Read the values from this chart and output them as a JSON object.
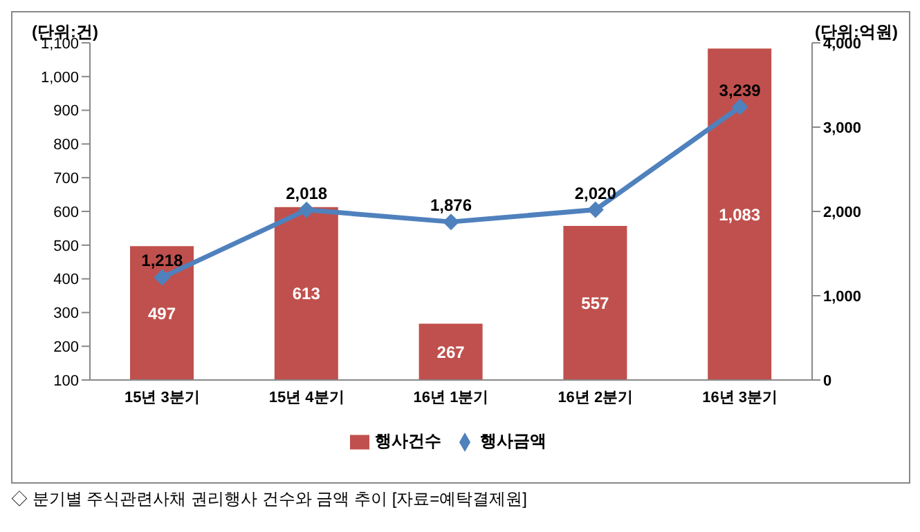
{
  "chart_data": {
    "type": "bar",
    "ylabel": "(단위:건)",
    "y2label": "(단위:억원)",
    "categories": [
      "15년 3분기",
      "15년 4분기",
      "16년 1분기",
      "16년 2분기",
      "16년 3분기"
    ],
    "series": [
      {
        "name": "행사건수",
        "color": "#c0504d",
        "values": [
          497,
          613,
          267,
          557,
          1083
        ],
        "value_labels": [
          "497",
          "613",
          "267",
          "557",
          "1,083"
        ]
      },
      {
        "name": "행사금액",
        "type": "line",
        "axis": "y2",
        "color": "#4f81bd",
        "marker": "diamond",
        "values": [
          1218,
          2018,
          1876,
          2020,
          3239
        ],
        "value_labels": [
          "1,218",
          "2,018",
          "1,876",
          "2,020",
          "3,239"
        ]
      }
    ],
    "ylim": [
      100,
      1100
    ],
    "yticks": [
      100,
      200,
      300,
      400,
      500,
      600,
      700,
      800,
      900,
      {
        "value": 1000,
        "label": "1,000"
      },
      {
        "value": 1100,
        "label": "1,100"
      }
    ],
    "y2lim": [
      0,
      4000
    ],
    "y2ticks": [
      0,
      {
        "value": 1000,
        "label": "1,000"
      },
      {
        "value": 2000,
        "label": "2,000"
      },
      {
        "value": 3000,
        "label": "3,000"
      },
      {
        "value": 4000,
        "label": "4,000"
      }
    ],
    "grid": false,
    "legend": "bottom",
    "annotations": [
      "◇ 분기별 주식관련사채 권리행사 건수와 금액 추이 [자료=예탁결제원]"
    ]
  }
}
